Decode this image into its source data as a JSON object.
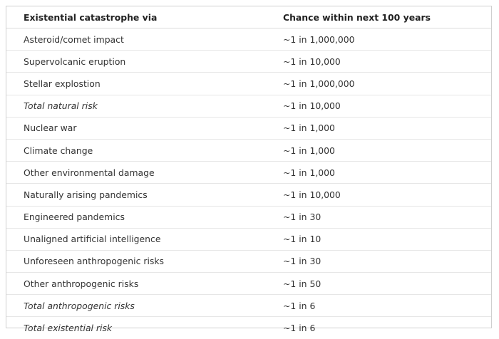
{
  "table": {
    "headers": [
      "Existential catastrophe via",
      "Chance within next 100 years"
    ],
    "rows": [
      {
        "label": "Asteroid/comet impact",
        "value": "~1 in 1,000,000",
        "italic": false
      },
      {
        "label": "Supervolcanic eruption",
        "value": "~1 in 10,000",
        "italic": false
      },
      {
        "label": "Stellar explostion",
        "value": "~1 in 1,000,000",
        "italic": false
      },
      {
        "label": "Total natural risk",
        "value": "~1 in 10,000",
        "italic": true
      },
      {
        "label": "Nuclear war",
        "value": "~1 in 1,000",
        "italic": false
      },
      {
        "label": "Climate change",
        "value": "~1 in 1,000",
        "italic": false
      },
      {
        "label": "Other environmental damage",
        "value": "~1 in 1,000",
        "italic": false
      },
      {
        "label": "Naturally arising pandemics",
        "value": "~1 in 10,000",
        "italic": false
      },
      {
        "label": "Engineered pandemics",
        "value": "~1 in 30",
        "italic": false
      },
      {
        "label": "Unaligned artificial intelligence",
        "value": "~1 in 10",
        "italic": false
      },
      {
        "label": "Unforeseen anthropogenic risks",
        "value": "~1 in 30",
        "italic": false
      },
      {
        "label": "Other anthropogenic risks",
        "value": "~1 in 50",
        "italic": false
      },
      {
        "label": "Total anthropogenic risks",
        "value": "~1 in 6",
        "italic": true
      },
      {
        "label": "Total existential risk",
        "value": "~1 in 6",
        "italic": true
      }
    ]
  }
}
